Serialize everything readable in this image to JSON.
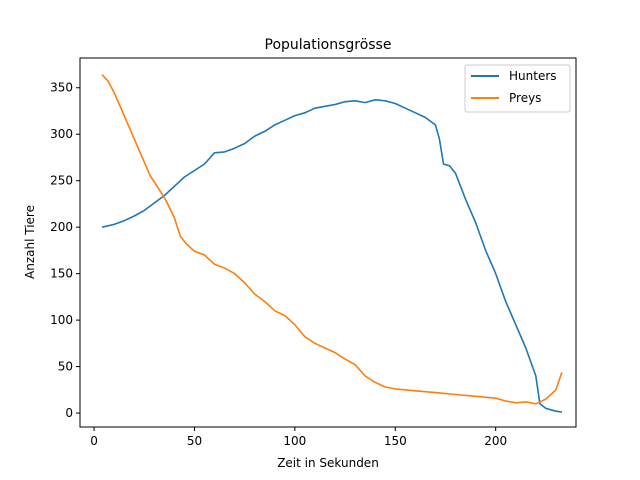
{
  "chart_data": {
    "type": "line",
    "title": "Populationsgrösse",
    "xlabel": "Zeit in Sekunden",
    "ylabel": "Anzahl Tiere",
    "xlim": [
      -7,
      240
    ],
    "ylim": [
      -15,
      382
    ],
    "xticks": [
      0,
      50,
      100,
      150,
      200
    ],
    "yticks": [
      0,
      50,
      100,
      150,
      200,
      250,
      300,
      350
    ],
    "grid": false,
    "legend_position": "upper right",
    "series": [
      {
        "name": "Hunters",
        "color": "#1f77b4",
        "x": [
          4,
          10,
          15,
          20,
          25,
          30,
          35,
          40,
          45,
          50,
          55,
          60,
          65,
          70,
          75,
          80,
          85,
          90,
          95,
          100,
          105,
          110,
          115,
          120,
          125,
          130,
          135,
          140,
          145,
          150,
          155,
          160,
          165,
          170,
          172,
          174,
          177,
          180,
          185,
          190,
          195,
          200,
          205,
          210,
          215,
          220,
          222,
          225,
          230,
          233
        ],
        "y": [
          200,
          203,
          207,
          212,
          218,
          226,
          234,
          244,
          254,
          261,
          268,
          280,
          281,
          285,
          290,
          298,
          303,
          310,
          315,
          320,
          323,
          328,
          330,
          332,
          335,
          336,
          334,
          337,
          336,
          333,
          328,
          323,
          318,
          310,
          295,
          268,
          266,
          258,
          230,
          205,
          175,
          150,
          120,
          95,
          70,
          40,
          10,
          5,
          2,
          1
        ]
      },
      {
        "name": "Preys",
        "color": "#ff7f0e",
        "x": [
          4,
          7,
          10,
          14,
          18,
          22,
          25,
          28,
          32,
          36,
          40,
          43,
          46,
          50,
          55,
          60,
          65,
          70,
          75,
          80,
          85,
          90,
          95,
          100,
          105,
          110,
          115,
          120,
          125,
          130,
          135,
          140,
          145,
          150,
          160,
          170,
          180,
          190,
          200,
          205,
          210,
          215,
          220,
          225,
          230,
          233
        ],
        "y": [
          364,
          357,
          345,
          325,
          305,
          285,
          270,
          255,
          242,
          228,
          210,
          190,
          182,
          174,
          170,
          160,
          156,
          150,
          140,
          128,
          120,
          110,
          105,
          95,
          82,
          75,
          70,
          65,
          58,
          52,
          40,
          33,
          28,
          26,
          24,
          22,
          20,
          18,
          16,
          13,
          11,
          12,
          10,
          15,
          25,
          44
        ]
      }
    ]
  }
}
